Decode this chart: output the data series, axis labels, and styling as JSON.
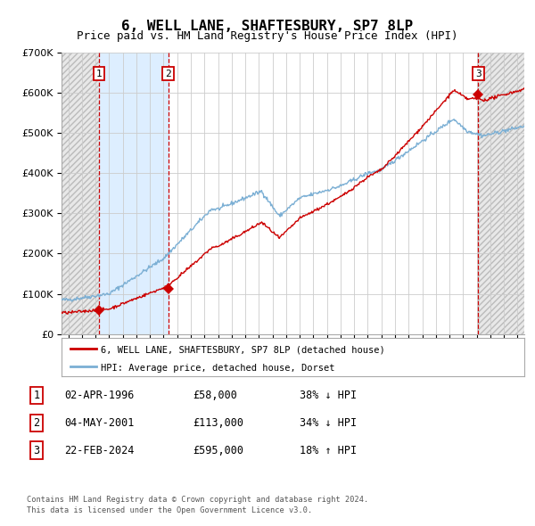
{
  "title": "6, WELL LANE, SHAFTESBURY, SP7 8LP",
  "subtitle": "Price paid vs. HM Land Registry's House Price Index (HPI)",
  "ylim": [
    0,
    700000
  ],
  "xlim_start": 1993.5,
  "xlim_end": 2027.5,
  "ytick_values": [
    0,
    100000,
    200000,
    300000,
    400000,
    500000,
    600000,
    700000
  ],
  "ytick_labels": [
    "£0",
    "£100K",
    "£200K",
    "£300K",
    "£400K",
    "£500K",
    "£600K",
    "£700K"
  ],
  "red_line_color": "#cc0000",
  "blue_line_color": "#7bafd4",
  "vline_color": "#cc0000",
  "shade_color": "#ddeeff",
  "hatch_color": "#e0e0e0",
  "bg_color": "#ffffff",
  "grid_color": "#cccccc",
  "transactions": [
    {
      "label": "1",
      "year": 1996.25,
      "price": 58000
    },
    {
      "label": "2",
      "year": 2001.33,
      "price": 113000
    },
    {
      "label": "3",
      "year": 2024.12,
      "price": 595000
    }
  ],
  "legend_red_label": "6, WELL LANE, SHAFTESBURY, SP7 8LP (detached house)",
  "legend_blue_label": "HPI: Average price, detached house, Dorset",
  "table_rows": [
    {
      "num": "1",
      "date": "02-APR-1996",
      "price": "£58,000",
      "pct": "38% ↓ HPI"
    },
    {
      "num": "2",
      "date": "04-MAY-2001",
      "price": "£113,000",
      "pct": "34% ↓ HPI"
    },
    {
      "num": "3",
      "date": "22-FEB-2024",
      "price": "£595,000",
      "pct": "18% ↑ HPI"
    }
  ],
  "footer1": "Contains HM Land Registry data © Crown copyright and database right 2024.",
  "footer2": "This data is licensed under the Open Government Licence v3.0."
}
